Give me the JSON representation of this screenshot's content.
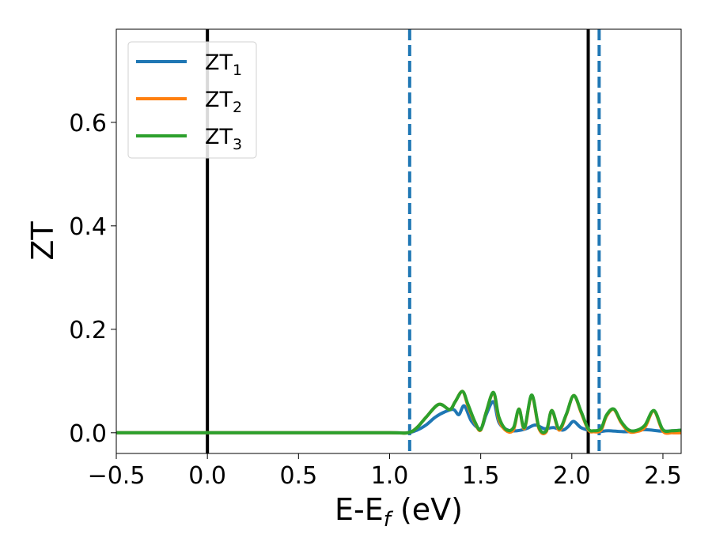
{
  "chart_data": {
    "type": "line",
    "xlabel": "E-E",
    "xlabel_sub": "f",
    "xlabel_unit": " (eV)",
    "ylabel": "ZT",
    "xlim": [
      -0.5,
      2.6
    ],
    "ylim": [
      -0.04,
      0.78
    ],
    "x_ticks": [
      {
        "value": -0.5,
        "label": "−0.5"
      },
      {
        "value": 0.0,
        "label": "0.0"
      },
      {
        "value": 0.5,
        "label": "0.5"
      },
      {
        "value": 1.0,
        "label": "1.0"
      },
      {
        "value": 1.5,
        "label": "1.5"
      },
      {
        "value": 2.0,
        "label": "2.0"
      },
      {
        "value": 2.5,
        "label": "2.5"
      }
    ],
    "y_ticks": [
      {
        "value": 0.0,
        "label": "0.0"
      },
      {
        "value": 0.2,
        "label": "0.2"
      },
      {
        "value": 0.4,
        "label": "0.4"
      },
      {
        "value": 0.6,
        "label": "0.6"
      }
    ],
    "grid": false,
    "legend_position": "top-left",
    "vertical_lines": [
      {
        "x": 0.0,
        "color": "#000000",
        "style": "solid"
      },
      {
        "x": 2.09,
        "color": "#000000",
        "style": "solid"
      },
      {
        "x": 1.11,
        "color": "#1f77b4",
        "style": "dashed"
      },
      {
        "x": 2.15,
        "color": "#1f77b4",
        "style": "dashed"
      }
    ],
    "series": [
      {
        "name": "ZT",
        "subscript": "1",
        "color": "#1f77b4",
        "x": [
          -0.5,
          0.0,
          0.5,
          1.0,
          1.1,
          1.15,
          1.2,
          1.25,
          1.3,
          1.35,
          1.38,
          1.41,
          1.45,
          1.5,
          1.53,
          1.57,
          1.6,
          1.65,
          1.7,
          1.75,
          1.8,
          1.85,
          1.9,
          1.95,
          1.98,
          2.01,
          2.05,
          2.1,
          2.15,
          2.2,
          2.3,
          2.4,
          2.5,
          2.6
        ],
        "y": [
          0.0,
          0.0,
          0.0,
          0.0,
          0.0,
          0.005,
          0.015,
          0.03,
          0.04,
          0.045,
          0.035,
          0.052,
          0.022,
          0.008,
          0.035,
          0.06,
          0.02,
          0.005,
          0.004,
          0.008,
          0.015,
          0.008,
          0.01,
          0.005,
          0.012,
          0.022,
          0.01,
          0.004,
          0.002,
          0.004,
          0.002,
          0.006,
          0.003,
          0.005
        ]
      },
      {
        "name": "ZT",
        "subscript": "2",
        "color": "#ff7f0e",
        "x": [
          -0.5,
          0.0,
          0.5,
          1.0,
          1.1,
          1.15,
          1.2,
          1.27,
          1.33,
          1.36,
          1.4,
          1.43,
          1.47,
          1.5,
          1.53,
          1.57,
          1.6,
          1.64,
          1.68,
          1.71,
          1.74,
          1.78,
          1.82,
          1.86,
          1.89,
          1.93,
          1.97,
          2.01,
          2.05,
          2.09,
          2.12,
          2.16,
          2.19,
          2.23,
          2.27,
          2.31,
          2.35,
          2.4,
          2.45,
          2.5,
          2.55,
          2.6
        ],
        "y": [
          0.0,
          0.0,
          0.0,
          0.0,
          0.0,
          0.01,
          0.03,
          0.055,
          0.045,
          0.06,
          0.08,
          0.052,
          0.018,
          0.005,
          0.04,
          0.077,
          0.025,
          0.004,
          0.006,
          0.046,
          0.008,
          0.072,
          0.008,
          0.002,
          0.043,
          0.005,
          0.035,
          0.072,
          0.04,
          0.006,
          0.002,
          0.005,
          0.032,
          0.045,
          0.02,
          0.003,
          0.002,
          0.01,
          0.042,
          0.003,
          0.0,
          0.0
        ]
      },
      {
        "name": "ZT",
        "subscript": "3",
        "color": "#2ca02c",
        "x": [
          -0.5,
          0.0,
          0.5,
          1.0,
          1.1,
          1.15,
          1.2,
          1.27,
          1.33,
          1.36,
          1.4,
          1.43,
          1.47,
          1.5,
          1.53,
          1.57,
          1.6,
          1.64,
          1.68,
          1.71,
          1.74,
          1.78,
          1.82,
          1.86,
          1.89,
          1.93,
          1.97,
          2.01,
          2.05,
          2.09,
          2.12,
          2.16,
          2.19,
          2.23,
          2.27,
          2.31,
          2.35,
          2.4,
          2.45,
          2.5,
          2.55,
          2.6
        ],
        "y": [
          0.0,
          0.0,
          0.0,
          0.0,
          0.0,
          0.01,
          0.03,
          0.055,
          0.045,
          0.06,
          0.08,
          0.055,
          0.02,
          0.006,
          0.04,
          0.078,
          0.03,
          0.006,
          0.01,
          0.046,
          0.01,
          0.073,
          0.01,
          0.004,
          0.043,
          0.008,
          0.036,
          0.072,
          0.042,
          0.008,
          0.004,
          0.008,
          0.034,
          0.046,
          0.022,
          0.006,
          0.004,
          0.014,
          0.043,
          0.006,
          0.004,
          0.005
        ]
      }
    ]
  }
}
